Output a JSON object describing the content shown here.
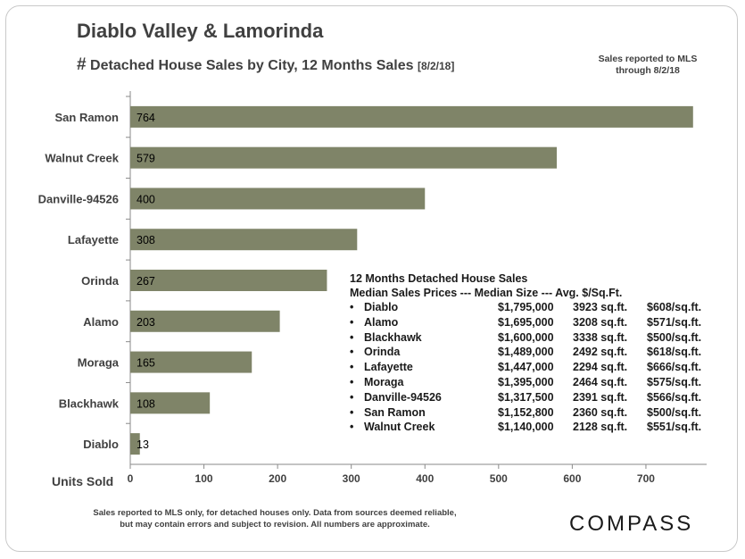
{
  "header": {
    "title": "Diablo Valley & Lamorinda",
    "subtitle_hash": "#",
    "subtitle": "Detached House Sales by City, 12 Months Sales",
    "subtitle_date": "[8/2/18]",
    "note": "Sales reported to MLS through 8/2/18"
  },
  "chart_data": {
    "type": "bar",
    "orientation": "horizontal",
    "categories": [
      "San Ramon",
      "Walnut Creek",
      "Danville-94526",
      "Lafayette",
      "Orinda",
      "Alamo",
      "Moraga",
      "Blackhawk",
      "Diablo"
    ],
    "values": [
      764,
      579,
      400,
      308,
      267,
      203,
      165,
      108,
      13
    ],
    "xlabel": "Units Sold",
    "xlim": [
      0,
      780
    ],
    "xticks": [
      0,
      100,
      200,
      300,
      400,
      500,
      600,
      700
    ],
    "bar_color": "#7f8468",
    "grid": false
  },
  "table": {
    "title": "12 Months  Detached  House  Sales",
    "header": "Median  Sales  Prices  --- Median  Size  --- Avg.  $/Sq.Ft.",
    "bullet": "•",
    "rows": [
      {
        "city": "Diablo",
        "price": "$1,795,000",
        "size": "3923 sq.ft.",
        "ppsf": "$608/sq.ft."
      },
      {
        "city": "Alamo",
        "price": "$1,695,000",
        "size": "3208 sq.ft.",
        "ppsf": "$571/sq.ft."
      },
      {
        "city": "Blackhawk",
        "price": "$1,600,000",
        "size": "3338 sq.ft.",
        "ppsf": "$500/sq.ft."
      },
      {
        "city": "Orinda",
        "price": "$1,489,000",
        "size": "2492 sq.ft.",
        "ppsf": "$618/sq.ft."
      },
      {
        "city": "Lafayette",
        "price": "$1,447,000",
        "size": "2294 sq.ft.",
        "ppsf": "$666/sq.ft."
      },
      {
        "city": "Moraga",
        "price": "$1,395,000",
        "size": "2464 sq.ft.",
        "ppsf": "$575/sq.ft."
      },
      {
        "city": "Danville-94526",
        "price": "$1,317,500",
        "size": "2391 sq.ft.",
        "ppsf": "$566/sq.ft."
      },
      {
        "city": "San Ramon",
        "price": "$1,152,800",
        "size": "2360 sq.ft.",
        "ppsf": "$500/sq.ft."
      },
      {
        "city": "Walnut Creek",
        "price": "$1,140,000",
        "size": "2128 sq.ft.",
        "ppsf": "$551/sq.ft."
      }
    ]
  },
  "footer": {
    "line1": "Sales reported to MLS only, for detached houses only. Data from sources deemed reliable,",
    "line2": "but may contain errors and subject to revision. All numbers are approximate."
  },
  "logo": "COMPASS"
}
